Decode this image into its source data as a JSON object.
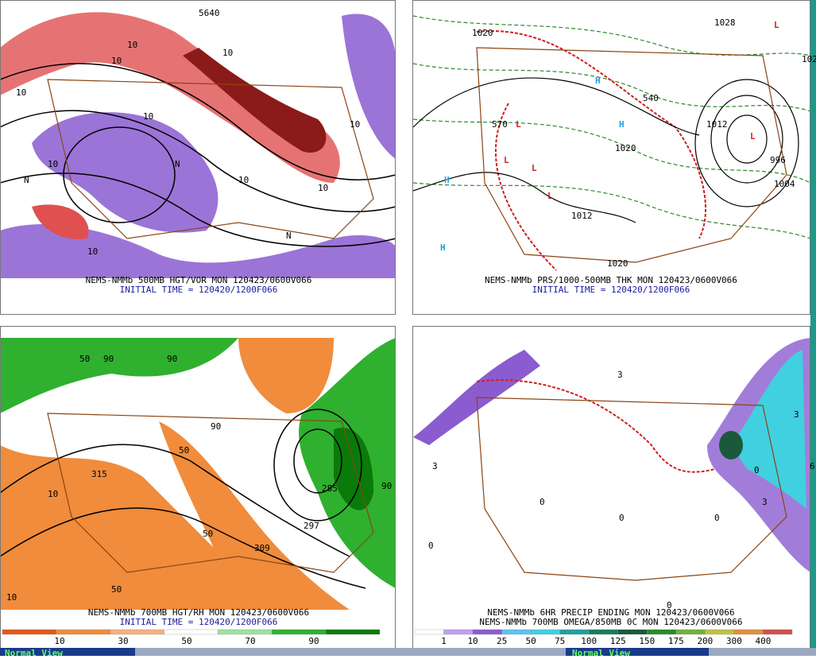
{
  "panels": [
    {
      "caption": [
        "NEMS-NMMb 500MB HGT/VOR MON 120423/0600V066",
        "INITIAL TIME = 120420/1200F066"
      ],
      "labels": [
        "10",
        "10",
        "10",
        "10",
        "10",
        "10",
        "10",
        "10",
        "N",
        "N",
        "N",
        "5640",
        "10",
        "10"
      ]
    },
    {
      "caption": [
        "NEMS-NMMb PRS/1000-500MB THK MON 120423/0600V066",
        "INITIAL TIME = 120420/1200F066"
      ],
      "labels": [
        "1020",
        "1028",
        "102",
        "H",
        "H",
        "H",
        "H",
        "L",
        "L",
        "L",
        "L",
        "L",
        "L",
        "1012",
        "1020",
        "1012",
        "996",
        "1004",
        "1020",
        "570",
        "540"
      ]
    },
    {
      "caption": [
        "NEMS-NMMb 700MB HGT/RH MON 120423/0600V066",
        "INITIAL TIME = 120420/1200F066"
      ],
      "labels": [
        "50",
        "90",
        "90",
        "315",
        "10",
        "50",
        "50",
        "90",
        "90",
        "285",
        "297",
        "309",
        "10",
        "50"
      ],
      "colorbar": [
        "10",
        "30",
        "50",
        "70",
        "90"
      ]
    },
    {
      "caption": [
        "NEMS-NMMb 6HR PRECIP ENDING MON 120423/0600V066",
        "NEMS-NMMb 700MB OMEGA/850MB 0C MON 120423/0600V066"
      ],
      "labels": [
        "3",
        "3",
        "3",
        "0",
        "0",
        "0",
        "0",
        "0",
        "0",
        "0",
        "3",
        "6"
      ],
      "colorbar": [
        "1",
        "10",
        "25",
        "50",
        "75",
        "100",
        "125",
        "150",
        "175",
        "200",
        "300",
        "400"
      ]
    }
  ],
  "buttons": [
    "Normal View",
    "Normal View"
  ]
}
